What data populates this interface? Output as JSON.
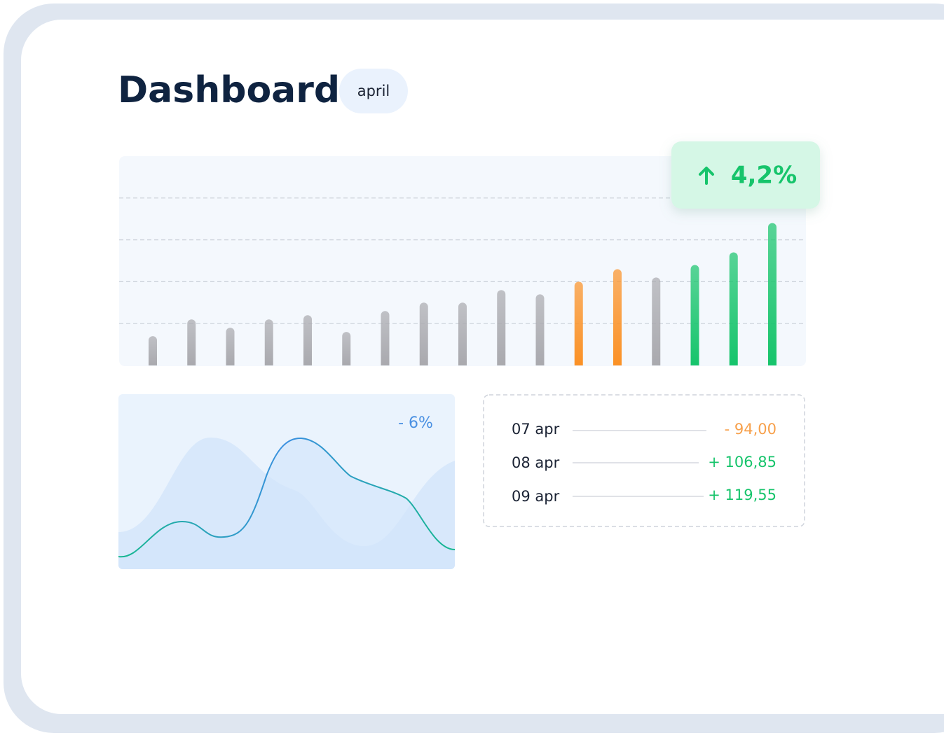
{
  "header": {
    "title": "Dashboard",
    "badge": "april"
  },
  "chart_data": {
    "type": "bar",
    "values": [
      0.7,
      1.1,
      0.9,
      1.1,
      1.2,
      0.8,
      1.3,
      1.5,
      1.5,
      1.8,
      1.7,
      2.0,
      2.3,
      2.1,
      2.4,
      2.7,
      3.4
    ],
    "colors": [
      "#a9a9ae",
      "#a9a9ae",
      "#a9a9ae",
      "#a9a9ae",
      "#a9a9ae",
      "#a9a9ae",
      "#a9a9ae",
      "#a9a9ae",
      "#a9a9ae",
      "#a9a9ae",
      "#a9a9ae",
      "#fb9125",
      "#fb9125",
      "#a9a9ae",
      "#16c46b",
      "#16c46b",
      "#16c46b"
    ],
    "ylim": [
      0,
      5
    ],
    "grid_lines": [
      1,
      2,
      3,
      4
    ]
  },
  "change": {
    "label": "4,2%"
  },
  "trend": {
    "label": "- 6%"
  },
  "table": {
    "rows": [
      [
        "07 apr",
        "- 94,00"
      ],
      [
        "08 apr",
        "+ 106,85"
      ],
      [
        "09 apr",
        "+ 119,55"
      ]
    ]
  }
}
